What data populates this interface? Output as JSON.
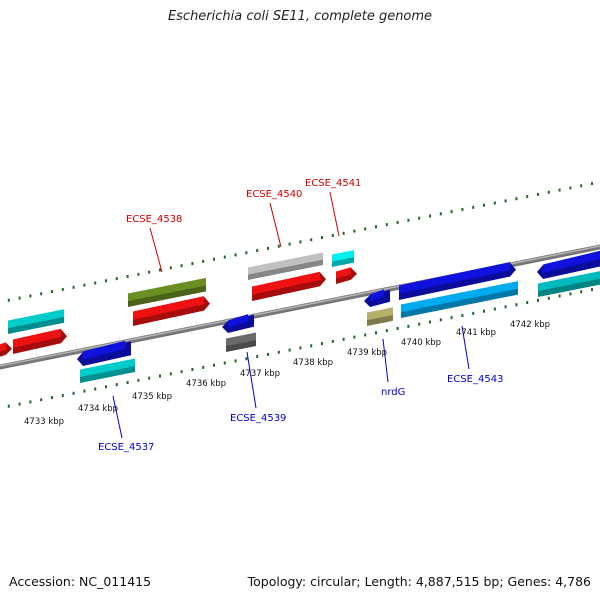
{
  "title": "Escherichia coli SE11, complete genome",
  "footer": {
    "accession": "Accession: NC_011415",
    "summary": "Topology: circular; Length: 4,887,515 bp; Genes: 4,786"
  },
  "colors": {
    "backbone": "#888888",
    "forward_label": "#cc0000",
    "reverse_label": "#0000cc",
    "tick": "#226622"
  },
  "scale": {
    "labels": [
      "4733 kbp",
      "4734 kbp",
      "4735 kbp",
      "4736 kbp",
      "4737 kbp",
      "4738 kbp",
      "4739 kbp",
      "4740 kbp",
      "4741 kbp",
      "4742 kbp"
    ]
  },
  "gene_labels": [
    {
      "text": "ECSE_4538",
      "strand": "forward"
    },
    {
      "text": "ECSE_4540",
      "strand": "forward"
    },
    {
      "text": "ECSE_4541",
      "strand": "forward"
    },
    {
      "text": "ECSE_4537",
      "strand": "reverse"
    },
    {
      "text": "ECSE_4539",
      "strand": "reverse"
    },
    {
      "text": "nrdG",
      "strand": "reverse"
    },
    {
      "text": "ECSE_4543",
      "strand": "reverse"
    }
  ],
  "features": [
    {
      "name": "forward-gene",
      "color": "#ee1111"
    },
    {
      "name": "forward-gene",
      "color": "#ee1111"
    },
    {
      "name": "forward-gene",
      "color": "#ee1111"
    },
    {
      "name": "forward-gene",
      "color": "#ee1111"
    },
    {
      "name": "forward-gene",
      "color": "#ee1111"
    },
    {
      "name": "forward-gene",
      "color": "#1111dd"
    },
    {
      "name": "forward-gene",
      "color": "#1111dd"
    },
    {
      "name": "forward-gene",
      "color": "#1111dd"
    },
    {
      "name": "forward-cds",
      "color": "#00cccc"
    },
    {
      "name": "forward-cds",
      "color": "#6b8e23"
    },
    {
      "name": "forward-cds",
      "color": "#c0c0c0"
    },
    {
      "name": "forward-cds",
      "color": "#00eeee"
    },
    {
      "name": "forward-cds",
      "color": "#00aaee"
    },
    {
      "name": "forward-cds",
      "color": "#00bbbb"
    },
    {
      "name": "reverse-gene",
      "color": "#1111dd"
    },
    {
      "name": "reverse-gene",
      "color": "#1111dd"
    },
    {
      "name": "reverse-cds",
      "color": "#00cccc"
    },
    {
      "name": "reverse-cds",
      "color": "#6a6a6a"
    },
    {
      "name": "reverse-cds",
      "color": "#b5b06a"
    }
  ]
}
